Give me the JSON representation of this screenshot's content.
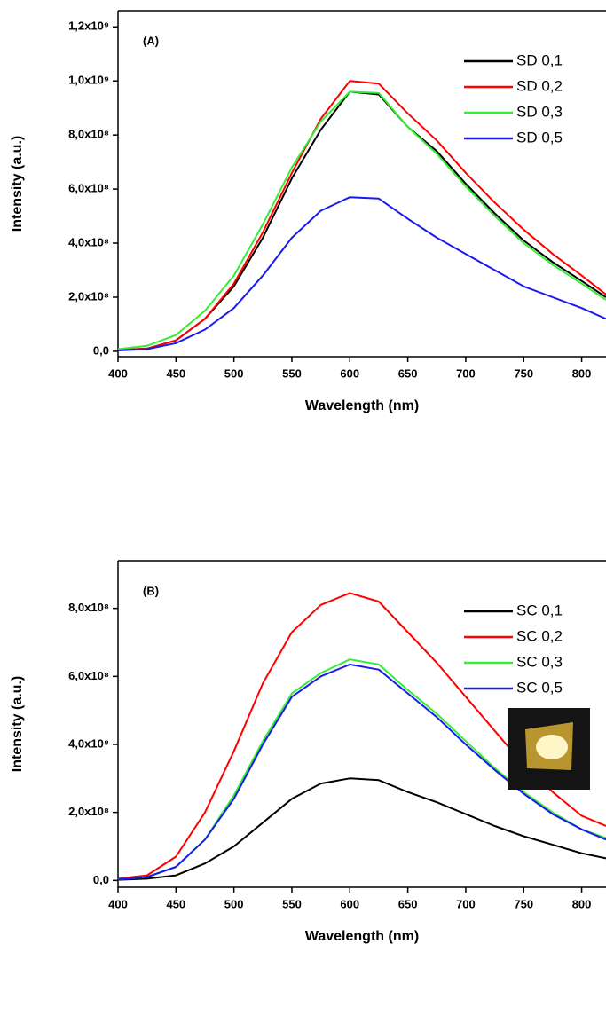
{
  "chart_data": [
    {
      "type": "line",
      "annotation": "(A)",
      "xlabel": "Wavelength (nm)",
      "ylabel": "Intensity (a.u.)",
      "x": [
        400,
        425,
        450,
        475,
        500,
        525,
        550,
        575,
        600,
        625,
        650,
        675,
        700,
        725,
        750,
        775,
        800,
        821
      ],
      "xlim": [
        400,
        821
      ],
      "xticks": [
        400,
        450,
        500,
        550,
        600,
        650,
        700,
        750,
        800
      ],
      "ylim": [
        -20000000.0,
        1260000000.0
      ],
      "yticks": [
        {
          "value": 0,
          "label": "0,0"
        },
        {
          "value": 200000000.0,
          "label": "2,0x10⁸"
        },
        {
          "value": 400000000.0,
          "label": "4,0x10⁸"
        },
        {
          "value": 600000000.0,
          "label": "6,0x10⁸"
        },
        {
          "value": 800000000.0,
          "label": "8,0x10⁸"
        },
        {
          "value": 1000000000.0,
          "label": "1,0x10⁹"
        },
        {
          "value": 1200000000.0,
          "label": "1,2x10⁹"
        }
      ],
      "legend": "upper right",
      "series": [
        {
          "name": "SD 0,1",
          "color": "#000000",
          "values": [
            5000000.0,
            10000000.0,
            40000000.0,
            120000000.0,
            240000000.0,
            420000000.0,
            640000000.0,
            820000000.0,
            960000000.0,
            950000000.0,
            830000000.0,
            740000000.0,
            620000000.0,
            510000000.0,
            410000000.0,
            330000000.0,
            260000000.0,
            200000000.0
          ]
        },
        {
          "name": "SD 0,2",
          "color": "#ff0000",
          "values": [
            5000000.0,
            10000000.0,
            40000000.0,
            120000000.0,
            250000000.0,
            440000000.0,
            660000000.0,
            860000000.0,
            1000000000.0,
            990000000.0,
            880000000.0,
            780000000.0,
            660000000.0,
            550000000.0,
            450000000.0,
            360000000.0,
            280000000.0,
            210000000.0
          ]
        },
        {
          "name": "SD 0,3",
          "color": "#33ee33",
          "values": [
            8000000.0,
            20000000.0,
            60000000.0,
            150000000.0,
            280000000.0,
            470000000.0,
            680000000.0,
            850000000.0,
            960000000.0,
            955000000.0,
            830000000.0,
            730000000.0,
            610000000.0,
            500000000.0,
            400000000.0,
            320000000.0,
            250000000.0,
            190000000.0
          ]
        },
        {
          "name": "SD 0,5",
          "color": "#1a1aee",
          "values": [
            3000000.0,
            8000000.0,
            30000000.0,
            80000000.0,
            160000000.0,
            280000000.0,
            420000000.0,
            520000000.0,
            570000000.0,
            565000000.0,
            490000000.0,
            420000000.0,
            360000000.0,
            300000000.0,
            240000000.0,
            200000000.0,
            160000000.0,
            120000000.0
          ]
        }
      ]
    },
    {
      "type": "line",
      "annotation": "(B)",
      "xlabel": "Wavelength (nm)",
      "ylabel": "Intensity (a.u.)",
      "x": [
        400,
        425,
        450,
        475,
        500,
        525,
        550,
        575,
        600,
        625,
        650,
        675,
        700,
        725,
        750,
        775,
        800,
        821
      ],
      "xlim": [
        400,
        821
      ],
      "xticks": [
        400,
        450,
        500,
        550,
        600,
        650,
        700,
        750,
        800
      ],
      "ylim": [
        -20000000.0,
        940000000.0
      ],
      "yticks": [
        {
          "value": 0,
          "label": "0,0"
        },
        {
          "value": 200000000.0,
          "label": "2,0x10⁸"
        },
        {
          "value": 400000000.0,
          "label": "4,0x10⁸"
        },
        {
          "value": 600000000.0,
          "label": "6,0x10⁸"
        },
        {
          "value": 800000000.0,
          "label": "8,0x10⁸"
        }
      ],
      "legend": "upper right",
      "series": [
        {
          "name": "SC 0,1",
          "color": "#000000",
          "values": [
            2000000.0,
            5000000.0,
            15000000.0,
            50000000.0,
            100000000.0,
            170000000.0,
            240000000.0,
            285000000.0,
            300000000.0,
            295000000.0,
            260000000.0,
            230000000.0,
            195000000.0,
            160000000.0,
            130000000.0,
            105000000.0,
            80000000.0,
            65000000.0
          ]
        },
        {
          "name": "SC 0,2",
          "color": "#ff0000",
          "values": [
            5000000.0,
            15000000.0,
            70000000.0,
            200000000.0,
            380000000.0,
            580000000.0,
            730000000.0,
            810000000.0,
            845000000.0,
            820000000.0,
            730000000.0,
            640000000.0,
            540000000.0,
            440000000.0,
            340000000.0,
            260000000.0,
            190000000.0,
            160000000.0
          ]
        },
        {
          "name": "SC 0,3",
          "color": "#33ee33",
          "values": [
            3000000.0,
            10000000.0,
            40000000.0,
            120000000.0,
            250000000.0,
            410000000.0,
            550000000.0,
            610000000.0,
            650000000.0,
            635000000.0,
            560000000.0,
            490000000.0,
            410000000.0,
            330000000.0,
            260000000.0,
            200000000.0,
            150000000.0,
            125000000.0
          ]
        },
        {
          "name": "SC 0,5",
          "color": "#1a1aee",
          "values": [
            3000000.0,
            10000000.0,
            40000000.0,
            120000000.0,
            240000000.0,
            400000000.0,
            540000000.0,
            600000000.0,
            635000000.0,
            620000000.0,
            550000000.0,
            480000000.0,
            400000000.0,
            325000000.0,
            255000000.0,
            195000000.0,
            150000000.0,
            120000000.0
          ]
        }
      ]
    }
  ]
}
